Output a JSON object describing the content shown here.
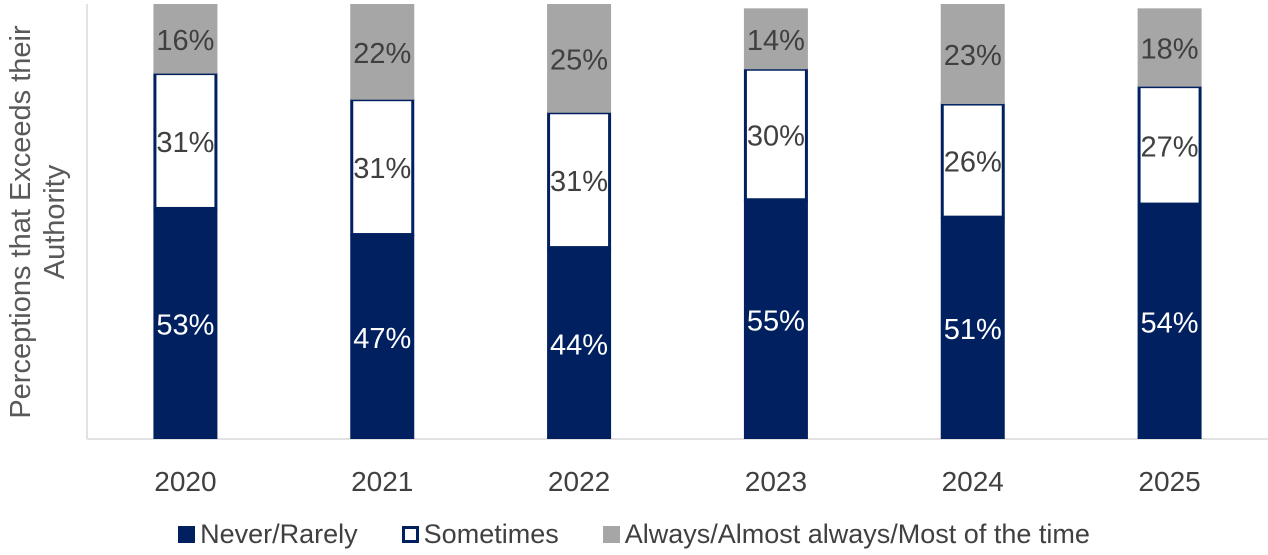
{
  "chart_data": {
    "type": "bar",
    "stacked": true,
    "title": "",
    "xlabel": "",
    "ylabel": "Perceptions that Exceeds their Authority",
    "categories": [
      "2020",
      "2021",
      "2022",
      "2023",
      "2024",
      "2025"
    ],
    "series": [
      {
        "name": "Never/Rarely",
        "color": "#002060",
        "values": [
          53,
          47,
          44,
          55,
          51,
          54
        ],
        "labels": [
          "53%",
          "47%",
          "44%",
          "55%",
          "51%",
          "54%"
        ]
      },
      {
        "name": "Sometimes",
        "color": "#ffffff",
        "border": "#002060",
        "values": [
          31,
          31,
          31,
          30,
          26,
          27
        ],
        "labels": [
          "31%",
          "31%",
          "31%",
          "30%",
          "26%",
          "27%"
        ]
      },
      {
        "name": "Always/Almost always/Most of the time",
        "color": "#a6a6a6",
        "values": [
          16,
          22,
          25,
          14,
          23,
          18
        ],
        "labels": [
          "16%",
          "22%",
          "25%",
          "14%",
          "23%",
          "18%"
        ]
      }
    ],
    "ylim": [
      0,
      100
    ],
    "grid": false,
    "legend": "bottom"
  }
}
